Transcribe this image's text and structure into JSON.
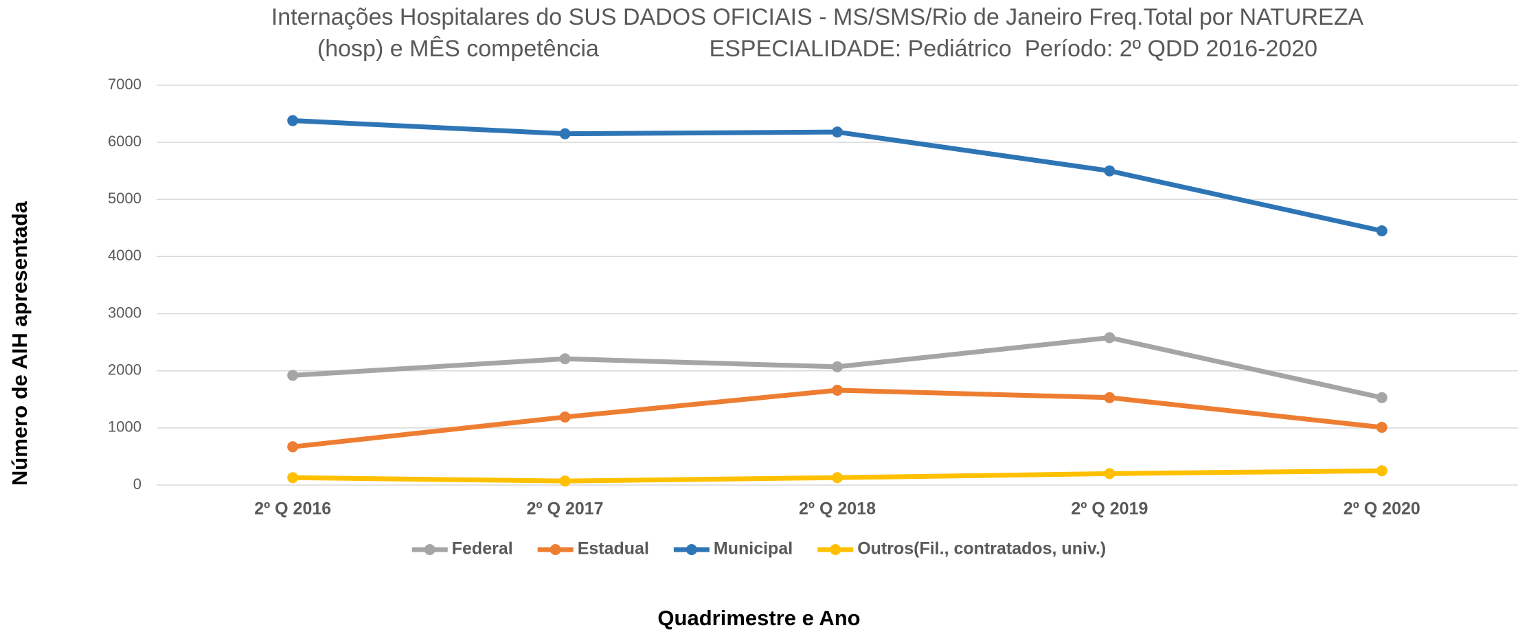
{
  "chart_data": {
    "type": "line",
    "title": "Internações Hospitalares do SUS DADOS OFICIAIS - MS/SMS/Rio de Janeiro Freq.Total por NATUREZA (hosp) e MÊS competência                 ESPECIALIDADE: Pediátrico  Período: 2º QDD 2016-2020",
    "x_label": "Quadrimestre e Ano",
    "y_label": "Número de AIH apresentada",
    "categories": [
      "2º Q 2016",
      "2º Q 2017",
      "2º Q 2018",
      "2º Q 2019",
      "2º Q 2020"
    ],
    "series": [
      {
        "name": "Federal",
        "color": "#a5a5a5",
        "values": [
          1920,
          2210,
          2070,
          2580,
          1530
        ]
      },
      {
        "name": "Estadual",
        "color": "#ed7d31",
        "values": [
          670,
          1190,
          1660,
          1530,
          1010
        ]
      },
      {
        "name": "Municipal",
        "color": "#2e75b6",
        "values": [
          6380,
          6150,
          6180,
          5500,
          4450
        ]
      },
      {
        "name": "Outros(Fil., contratados, univ.)",
        "color": "#ffc000",
        "values": [
          130,
          70,
          130,
          200,
          250
        ]
      }
    ],
    "ylim": [
      0,
      7000
    ],
    "yticks": [
      0,
      1000,
      2000,
      3000,
      4000,
      5000,
      6000,
      7000
    ],
    "grid": true,
    "legend": "bottom"
  }
}
